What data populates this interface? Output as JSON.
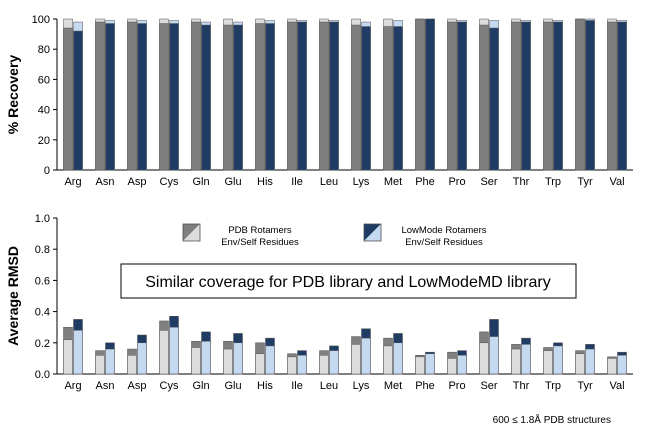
{
  "colors": {
    "pdb_env": "#7f7f7f",
    "pdb_self": "#dcdcdc",
    "lowmode_env": "#1f3c64",
    "lowmode_self": "#c5d9f1",
    "bar_outline": "#505050",
    "axis": "#000000"
  },
  "callout_text": "Similar coverage for PDB library and LowModeMD library",
  "footnote": "600 ≤ 1.8Å PDB structures",
  "legend": {
    "pdb_line1": "PDB Rotamers",
    "pdb_line2": "Env/Self Residues",
    "lowmode_line1": "LowMode Rotamers",
    "lowmode_line2": "Env/Self Residues"
  },
  "chart_data": [
    {
      "type": "bar",
      "ylabel": "% Recovery",
      "ylim": [
        0,
        100
      ],
      "yticks": [
        0,
        20,
        40,
        60,
        80,
        100
      ],
      "categories": [
        "Arg",
        "Asn",
        "Asp",
        "Cys",
        "Gln",
        "Glu",
        "His",
        "Ile",
        "Leu",
        "Lys",
        "Met",
        "Phe",
        "Pro",
        "Ser",
        "Thr",
        "Trp",
        "Tyr",
        "Val"
      ],
      "series": [
        {
          "name": "PDB Rotamers (Env)",
          "values": [
            94,
            98,
            98,
            97,
            98,
            96,
            97,
            98,
            98,
            96,
            95,
            100,
            98,
            96,
            98,
            98,
            100,
            98
          ]
        },
        {
          "name": "PDB Rotamers (Self)",
          "values": [
            100,
            100,
            100,
            100,
            100,
            100,
            100,
            100,
            100,
            100,
            100,
            100,
            100,
            100,
            100,
            100,
            100,
            100
          ]
        },
        {
          "name": "LowMode Rotamers (Env)",
          "values": [
            92,
            97,
            97,
            97,
            96,
            96,
            97,
            98,
            98,
            95,
            95,
            100,
            98,
            94,
            98,
            98,
            99,
            98
          ]
        },
        {
          "name": "LowMode Rotamers (Self)",
          "values": [
            98,
            99,
            99,
            99,
            98,
            98,
            99,
            99,
            99,
            98,
            99,
            100,
            99,
            99,
            99,
            99,
            100,
            99
          ]
        }
      ]
    },
    {
      "type": "bar",
      "ylabel": "Average RMSD",
      "ylim": [
        0,
        1.0
      ],
      "yticks": [
        "0.0",
        "0.2",
        "0.4",
        "0.6",
        "0.8",
        "1.0"
      ],
      "categories": [
        "Arg",
        "Asn",
        "Asp",
        "Cys",
        "Gln",
        "Glu",
        "His",
        "Ile",
        "Leu",
        "Lys",
        "Met",
        "Phe",
        "Pro",
        "Ser",
        "Thr",
        "Trp",
        "Tyr",
        "Val"
      ],
      "series": [
        {
          "name": "PDB Rotamers (Env)",
          "values": [
            0.3,
            0.15,
            0.16,
            0.34,
            0.21,
            0.21,
            0.2,
            0.13,
            0.15,
            0.24,
            0.23,
            0.12,
            0.14,
            0.27,
            0.19,
            0.17,
            0.15,
            0.11
          ]
        },
        {
          "name": "PDB Rotamers (Self)",
          "values": [
            0.22,
            0.12,
            0.12,
            0.28,
            0.17,
            0.16,
            0.13,
            0.11,
            0.12,
            0.19,
            0.18,
            0.11,
            0.1,
            0.2,
            0.16,
            0.15,
            0.13,
            0.1
          ]
        },
        {
          "name": "LowMode Rotamers (Env)",
          "values": [
            0.35,
            0.2,
            0.25,
            0.37,
            0.27,
            0.26,
            0.23,
            0.15,
            0.18,
            0.29,
            0.26,
            0.14,
            0.15,
            0.35,
            0.23,
            0.2,
            0.19,
            0.14
          ]
        },
        {
          "name": "LowMode Rotamers (Self)",
          "values": [
            0.28,
            0.16,
            0.2,
            0.3,
            0.21,
            0.2,
            0.18,
            0.12,
            0.15,
            0.23,
            0.2,
            0.13,
            0.12,
            0.24,
            0.19,
            0.18,
            0.16,
            0.12
          ]
        }
      ]
    }
  ]
}
